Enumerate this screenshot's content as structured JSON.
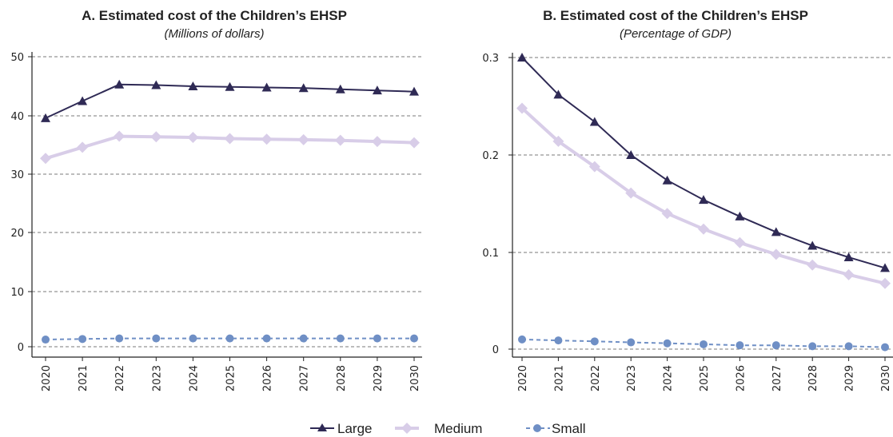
{
  "colors": {
    "large": "#2f2a55",
    "medium": "#d8cde8",
    "small": "#6f8fc5",
    "grid": "#7a7a7a",
    "axis": "#222222"
  },
  "legend": {
    "large": "Large",
    "medium": "Medium",
    "small": "Small"
  },
  "chart_data": [
    {
      "type": "line",
      "title": "A. Estimated cost of the Children’s EHSP",
      "subtitle": "(Millions of dollars)",
      "x": [
        "2020",
        "2021",
        "2022",
        "2023",
        "2024",
        "2025",
        "2026",
        "2027",
        "2028",
        "2029",
        "2030"
      ],
      "ylim": [
        0,
        50
      ],
      "yticks": [
        0,
        10,
        20,
        30,
        40,
        50
      ],
      "ytick_labels": [
        "0",
        "10",
        "20",
        "30",
        "40",
        "50"
      ],
      "grid": true,
      "legend_position": "bottom-center",
      "series": [
        {
          "name": "Large",
          "marker": "triangle",
          "values": [
            39.6,
            42.5,
            45.3,
            45.2,
            45.0,
            44.9,
            44.8,
            44.7,
            44.5,
            44.3,
            44.1
          ]
        },
        {
          "name": "Medium",
          "marker": "diamond",
          "values": [
            32.7,
            34.6,
            36.5,
            36.4,
            36.3,
            36.1,
            36.0,
            35.9,
            35.8,
            35.6,
            35.4
          ]
        },
        {
          "name": "Small",
          "marker": "circle",
          "dashed": true,
          "values": [
            1.3,
            1.4,
            1.5,
            1.5,
            1.5,
            1.5,
            1.5,
            1.5,
            1.5,
            1.5,
            1.5
          ]
        }
      ]
    },
    {
      "type": "line",
      "title": "B. Estimated cost of the Children’s EHSP",
      "subtitle": "(Percentage of GDP)",
      "x": [
        "2020",
        "2021",
        "2022",
        "2023",
        "2024",
        "2025",
        "2026",
        "2027",
        "2028",
        "2029",
        "2030"
      ],
      "ylim": [
        0,
        0.3
      ],
      "yticks": [
        0,
        0.1,
        0.2,
        0.3
      ],
      "ytick_labels": [
        "0",
        "0.1",
        "0.2",
        "0.3"
      ],
      "grid": true,
      "legend_position": "bottom-center",
      "series": [
        {
          "name": "Large",
          "marker": "triangle",
          "values": [
            0.3,
            0.262,
            0.234,
            0.2,
            0.174,
            0.154,
            0.137,
            0.121,
            0.107,
            0.095,
            0.084
          ]
        },
        {
          "name": "Medium",
          "marker": "diamond",
          "values": [
            0.248,
            0.214,
            0.188,
            0.161,
            0.14,
            0.124,
            0.11,
            0.098,
            0.087,
            0.077,
            0.068
          ]
        },
        {
          "name": "Small",
          "marker": "circle",
          "dashed": true,
          "values": [
            0.01,
            0.009,
            0.008,
            0.007,
            0.006,
            0.005,
            0.004,
            0.004,
            0.003,
            0.003,
            0.002
          ]
        }
      ]
    }
  ]
}
